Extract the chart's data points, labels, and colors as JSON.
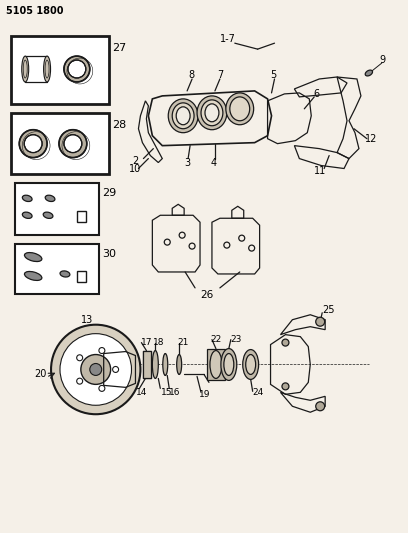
{
  "title_code": "5105 1800",
  "bg_color": "#f5f0e8",
  "line_color": "#1a1a1a",
  "fig_width": 4.08,
  "fig_height": 5.33,
  "dpi": 100
}
